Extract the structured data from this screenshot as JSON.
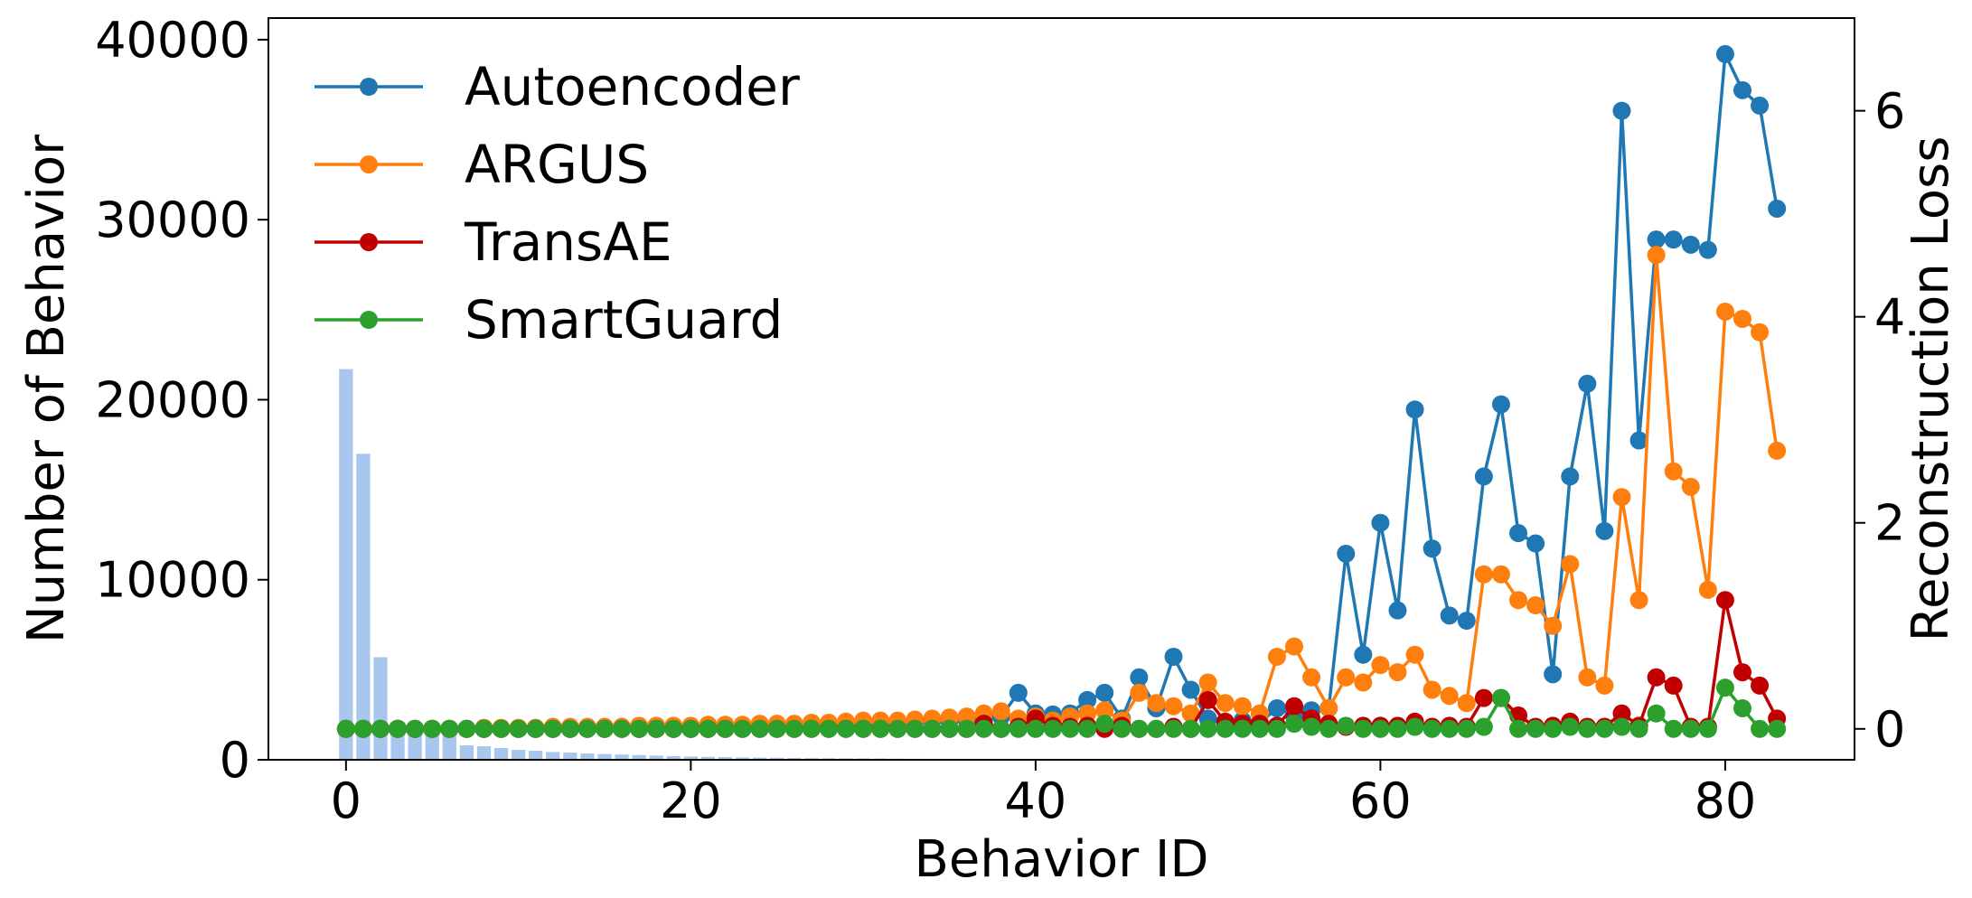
{
  "chart_data": {
    "type": "bar+line",
    "title": "",
    "xlabel": "Behavior ID",
    "ylabel_left": "Number of Behavior",
    "ylabel_right": "Reconstruction Loss",
    "xlim": [
      -4.5,
      87.5
    ],
    "xticks": [
      0,
      20,
      40,
      60,
      80
    ],
    "ylim_left": [
      0,
      41200
    ],
    "yticks_left": [
      0,
      10000,
      20000,
      30000,
      40000
    ],
    "ylim_right": [
      -0.3,
      6.9
    ],
    "yticks_right": [
      0,
      2,
      4,
      6
    ],
    "grid": false,
    "legend_position": "top-left",
    "bar_series": {
      "name": "",
      "color": "#a9c6ee",
      "x": [
        0,
        1,
        2,
        3,
        4,
        5,
        6,
        7,
        8,
        9,
        10,
        11,
        12,
        13,
        14,
        15,
        16,
        17,
        18,
        19,
        20,
        21,
        22,
        23,
        24,
        25,
        26,
        27,
        28,
        29,
        30,
        31,
        32,
        33,
        34,
        35,
        36,
        37,
        38,
        39,
        40,
        41,
        42,
        43,
        44,
        45,
        46,
        47,
        48,
        49,
        50,
        51,
        52,
        53,
        54,
        55,
        56,
        57,
        58,
        59,
        60,
        61,
        62,
        63,
        64,
        65,
        66,
        67,
        68,
        69,
        70,
        71,
        72,
        73,
        74,
        75,
        76,
        77,
        78,
        79,
        80,
        81,
        82,
        83
      ],
      "values": [
        21700,
        17000,
        5700,
        2100,
        1800,
        1700,
        1500,
        800,
        750,
        650,
        550,
        500,
        430,
        400,
        350,
        320,
        290,
        260,
        230,
        200,
        180,
        160,
        150,
        130,
        120,
        110,
        100,
        90,
        85,
        80,
        75,
        70,
        60,
        55,
        50,
        45,
        40,
        38,
        35,
        30,
        28,
        25,
        22,
        20,
        18,
        16,
        15,
        13,
        12,
        10,
        10,
        9,
        8,
        7,
        6,
        5,
        5,
        4,
        4,
        3,
        3,
        3,
        2,
        2,
        2,
        2,
        2,
        2,
        1,
        1,
        1,
        1,
        1,
        1,
        1,
        1,
        1,
        1,
        1,
        1,
        1,
        1,
        1,
        1
      ]
    },
    "x": [
      0,
      1,
      2,
      3,
      4,
      5,
      6,
      7,
      8,
      9,
      10,
      11,
      12,
      13,
      14,
      15,
      16,
      17,
      18,
      19,
      20,
      21,
      22,
      23,
      24,
      25,
      26,
      27,
      28,
      29,
      30,
      31,
      32,
      33,
      34,
      35,
      36,
      37,
      38,
      39,
      40,
      41,
      42,
      43,
      44,
      45,
      46,
      47,
      48,
      49,
      50,
      51,
      52,
      53,
      54,
      55,
      56,
      57,
      58,
      59,
      60,
      61,
      62,
      63,
      64,
      65,
      66,
      67,
      68,
      69,
      70,
      71,
      72,
      73,
      74,
      75,
      76,
      77,
      78,
      79,
      80,
      81,
      82,
      83
    ],
    "series": [
      {
        "name": "Autoencoder",
        "color": "#1f77b4",
        "values": [
          0,
          0,
          0,
          0,
          0,
          0,
          0,
          0,
          0,
          0,
          0,
          0,
          0,
          0,
          0,
          0,
          0,
          0,
          0,
          0,
          0,
          0,
          0,
          0.01,
          0.03,
          0.02,
          0.03,
          0.03,
          0.04,
          0.04,
          0.05,
          0.05,
          0.06,
          0.07,
          0.08,
          0.08,
          0.09,
          0.1,
          0.12,
          0.35,
          0.15,
          0.14,
          0.15,
          0.28,
          0.35,
          0.1,
          0.5,
          0.2,
          0.7,
          0.38,
          0.1,
          0.05,
          0.08,
          0.06,
          0.2,
          0.13,
          0.18,
          0.2,
          1.7,
          0.72,
          2.0,
          1.15,
          3.1,
          1.75,
          1.1,
          1.05,
          2.45,
          3.15,
          1.9,
          1.8,
          0.53,
          2.45,
          3.35,
          1.92,
          6.0,
          2.8,
          4.75,
          4.75,
          4.7,
          4.65,
          6.55,
          6.2,
          6.05,
          5.05
        ]
      },
      {
        "name": "ARGUS",
        "color": "#ff7f0e",
        "values": [
          0,
          0,
          0,
          0,
          0,
          0,
          0,
          0,
          0.01,
          0.01,
          0.01,
          0.01,
          0.02,
          0.02,
          0.02,
          0.02,
          0.02,
          0.03,
          0.03,
          0.03,
          0.03,
          0.04,
          0.04,
          0.04,
          0.05,
          0.05,
          0.05,
          0.06,
          0.06,
          0.07,
          0.08,
          0.08,
          0.08,
          0.09,
          0.1,
          0.11,
          0.12,
          0.15,
          0.17,
          0.1,
          0.12,
          0.08,
          0.12,
          0.15,
          0.18,
          0.08,
          0.35,
          0.25,
          0.22,
          0.15,
          0.45,
          0.25,
          0.22,
          0.15,
          0.7,
          0.8,
          0.5,
          0.2,
          0.5,
          0.45,
          0.62,
          0.55,
          0.72,
          0.38,
          0.32,
          0.25,
          1.5,
          1.5,
          1.25,
          1.2,
          1.0,
          1.6,
          0.5,
          0.42,
          2.25,
          1.25,
          4.6,
          2.5,
          2.35,
          1.35,
          4.05,
          3.98,
          3.85,
          2.7
        ]
      },
      {
        "name": "TransAE",
        "color": "#c00000",
        "values": [
          0,
          0,
          0,
          0,
          0,
          0,
          0,
          0,
          0,
          0,
          0,
          0,
          0,
          0,
          0,
          0,
          0,
          0,
          0,
          0,
          0,
          0,
          0,
          0,
          0,
          0,
          0,
          0,
          0,
          0,
          0,
          0,
          0,
          0,
          0,
          0,
          0,
          0.05,
          0,
          0.02,
          0.1,
          0.03,
          0.02,
          0.03,
          0,
          0.03,
          0,
          0,
          0.02,
          0,
          0.28,
          0.07,
          0.05,
          0.05,
          0.03,
          0.22,
          0.1,
          0.05,
          0.02,
          0.03,
          0.03,
          0.03,
          0.07,
          0.02,
          0.03,
          0.02,
          0.3,
          0.3,
          0.13,
          0.02,
          0.03,
          0.07,
          0.02,
          0.02,
          0.15,
          0.03,
          0.5,
          0.42,
          0.02,
          0.02,
          1.25,
          0.55,
          0.42,
          0.1
        ]
      },
      {
        "name": "SmartGuard",
        "color": "#2ca02c",
        "values": [
          0,
          0,
          0,
          0,
          0,
          0,
          0,
          0,
          0,
          0,
          0,
          0,
          0,
          0,
          0,
          0,
          0,
          0,
          0,
          0,
          0,
          0,
          0,
          0,
          0,
          0,
          0,
          0,
          0,
          0,
          0,
          0,
          0,
          0,
          0,
          0,
          0,
          0,
          0,
          0,
          0,
          0,
          0,
          0,
          0.05,
          0,
          0,
          0,
          0,
          0,
          0,
          0,
          0,
          0,
          0,
          0.05,
          0.02,
          0,
          0.03,
          0,
          0,
          0,
          0.02,
          0,
          0,
          0,
          0.02,
          0.3,
          0,
          0,
          0,
          0.02,
          0,
          0,
          0.02,
          0,
          0.15,
          0,
          0,
          0,
          0.4,
          0.2,
          0,
          0
        ]
      }
    ]
  }
}
